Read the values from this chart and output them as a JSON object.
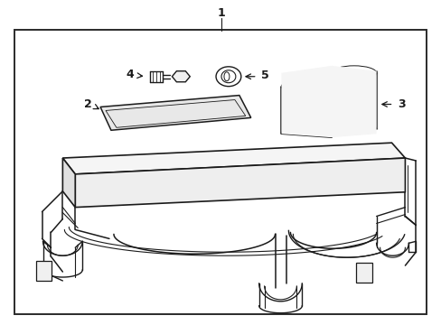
{
  "bg_color": "#ffffff",
  "line_color": "#1a1a1a",
  "border_color": "#2a2a2a",
  "fig_width": 4.89,
  "fig_height": 3.6,
  "dpi": 100,
  "labels": {
    "1": "1",
    "2": "2",
    "3": "3",
    "4": "4",
    "5": "5"
  }
}
